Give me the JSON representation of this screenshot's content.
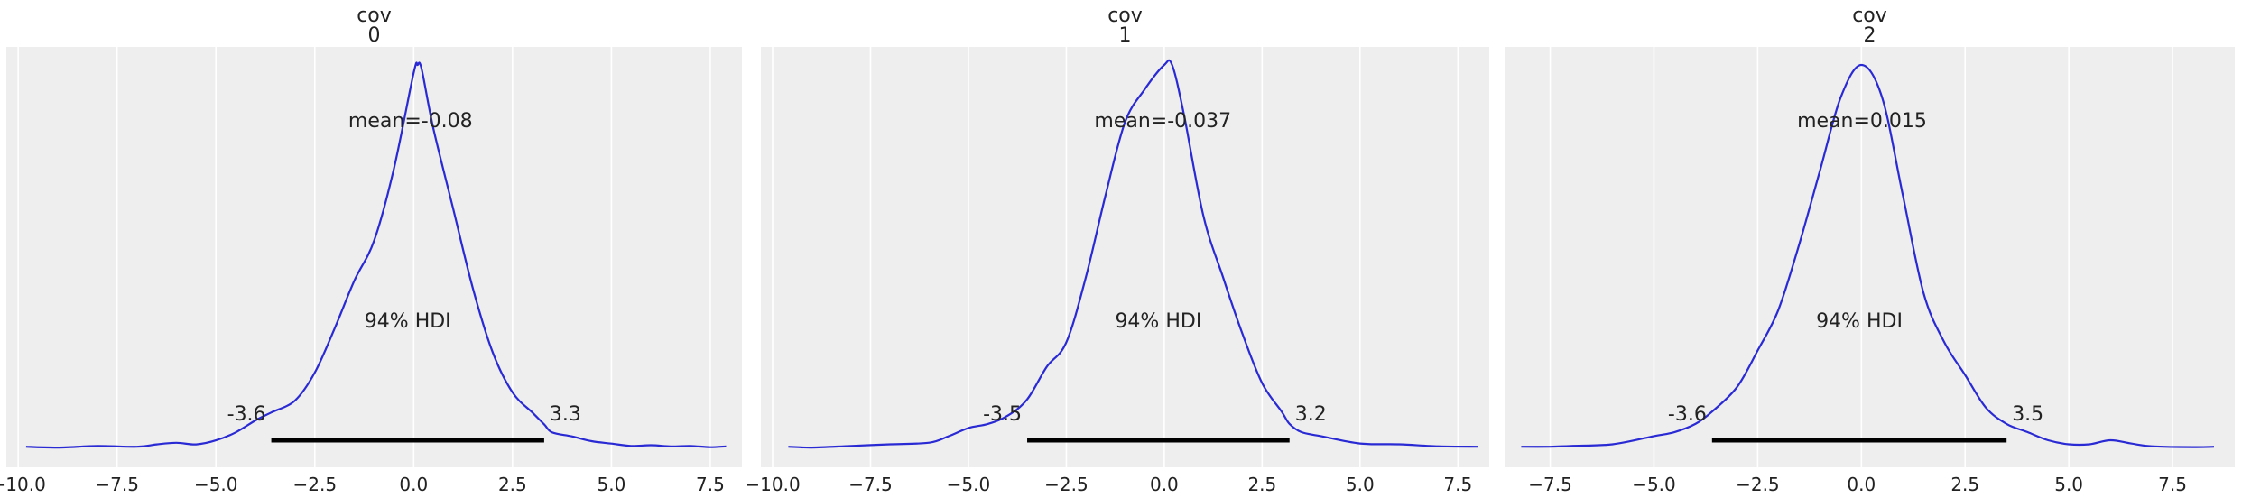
{
  "chart_data": [
    {
      "type": "line",
      "title": [
        "cov",
        "0"
      ],
      "xlim": [
        -10.3,
        8.3
      ],
      "xticks": [
        -10.0,
        -7.5,
        -5.0,
        -2.5,
        0.0,
        2.5,
        5.0,
        7.5
      ],
      "xtick_labels": [
        "−10.0",
        "−7.5",
        "−5.0",
        "−2.5",
        "0.0",
        "2.5",
        "5.0",
        "7.5"
      ],
      "grid": true,
      "density": {
        "x": [
          -9.8,
          -9.0,
          -8.0,
          -7.0,
          -6.5,
          -6.0,
          -5.5,
          -5.0,
          -4.5,
          -4.0,
          -3.6,
          -3.0,
          -2.5,
          -2.0,
          -1.5,
          -1.0,
          -0.5,
          0.0,
          0.1,
          0.2,
          0.5,
          1.0,
          1.5,
          2.0,
          2.5,
          3.0,
          3.3,
          3.5,
          4.0,
          4.5,
          5.0,
          5.5,
          6.0,
          6.5,
          7.0,
          7.5,
          7.9
        ],
        "y": [
          0.004,
          0.002,
          0.006,
          0.004,
          0.01,
          0.014,
          0.01,
          0.02,
          0.04,
          0.07,
          0.09,
          0.12,
          0.19,
          0.3,
          0.42,
          0.52,
          0.7,
          0.94,
          0.96,
          0.95,
          0.8,
          0.6,
          0.4,
          0.24,
          0.14,
          0.09,
          0.06,
          0.04,
          0.03,
          0.018,
          0.012,
          0.006,
          0.008,
          0.005,
          0.006,
          0.003,
          0.005
        ]
      },
      "mean_label": "mean=-0.08",
      "mean_label_x": -0.08,
      "hdi_label": "94% HDI",
      "hdi": [
        -3.6,
        3.3
      ],
      "hdi_lower_label": "-3.6",
      "hdi_upper_label": "3.3",
      "line_color": "#2a2ad4",
      "hdi_color": "#000000",
      "background_color": "#eeeeee",
      "grid_color": "#ffffff"
    },
    {
      "type": "line",
      "title": [
        "cov",
        "1"
      ],
      "xlim": [
        -10.3,
        8.3
      ],
      "xticks": [
        -10.0,
        -7.5,
        -5.0,
        -2.5,
        0.0,
        2.5,
        5.0,
        7.5
      ],
      "xtick_labels": [
        "−10.0",
        "−7.5",
        "−5.0",
        "−2.5",
        "0.0",
        "2.5",
        "5.0",
        "7.5"
      ],
      "grid": true,
      "density": {
        "x": [
          -9.6,
          -9.0,
          -8.0,
          -7.0,
          -6.0,
          -5.5,
          -5.0,
          -4.5,
          -4.0,
          -3.5,
          -3.0,
          -2.5,
          -2.0,
          -1.5,
          -1.0,
          -0.5,
          0.0,
          0.2,
          0.5,
          1.0,
          1.5,
          2.0,
          2.5,
          3.0,
          3.2,
          3.5,
          4.0,
          5.0,
          6.0,
          7.0,
          8.0
        ],
        "y": [
          0.004,
          0.002,
          0.006,
          0.01,
          0.014,
          0.03,
          0.05,
          0.06,
          0.08,
          0.12,
          0.2,
          0.26,
          0.42,
          0.62,
          0.8,
          0.88,
          0.94,
          0.94,
          0.82,
          0.57,
          0.42,
          0.28,
          0.16,
          0.09,
          0.06,
          0.04,
          0.03,
          0.012,
          0.01,
          0.005,
          0.004
        ]
      },
      "mean_label": "mean=-0.037",
      "mean_label_x": -0.037,
      "hdi_label": "94% HDI",
      "hdi": [
        -3.5,
        3.2
      ],
      "hdi_lower_label": "-3.5",
      "hdi_upper_label": "3.2",
      "line_color": "#2a2ad4",
      "hdi_color": "#000000",
      "background_color": "#eeeeee",
      "grid_color": "#ffffff"
    },
    {
      "type": "line",
      "title": [
        "cov",
        "2"
      ],
      "xlim": [
        -8.6,
        9.0
      ],
      "xticks": [
        -7.5,
        -5.0,
        -2.5,
        0.0,
        2.5,
        5.0,
        7.5
      ],
      "xtick_labels": [
        "−7.5",
        "−5.0",
        "−2.5",
        "0.0",
        "2.5",
        "5.0",
        "7.5"
      ],
      "grid": true,
      "density": {
        "x": [
          -8.2,
          -7.5,
          -7.0,
          -6.0,
          -5.0,
          -4.5,
          -4.0,
          -3.6,
          -3.0,
          -2.5,
          -2.0,
          -1.5,
          -1.0,
          -0.5,
          0.0,
          0.5,
          1.0,
          1.5,
          2.0,
          2.5,
          3.0,
          3.5,
          4.0,
          4.5,
          5.0,
          5.5,
          6.0,
          6.5,
          7.0,
          8.0,
          8.5
        ],
        "y": [
          0.004,
          0.004,
          0.006,
          0.01,
          0.03,
          0.04,
          0.06,
          0.09,
          0.15,
          0.24,
          0.34,
          0.5,
          0.68,
          0.86,
          0.94,
          0.86,
          0.62,
          0.38,
          0.26,
          0.18,
          0.1,
          0.06,
          0.04,
          0.02,
          0.01,
          0.01,
          0.02,
          0.012,
          0.005,
          0.003,
          0.004
        ]
      },
      "mean_label": "mean=0.015",
      "mean_label_x": 0.015,
      "hdi_label": "94% HDI",
      "hdi": [
        -3.6,
        3.5
      ],
      "hdi_lower_label": "-3.6",
      "hdi_upper_label": "3.5",
      "line_color": "#2a2ad4",
      "hdi_color": "#000000",
      "background_color": "#eeeeee",
      "grid_color": "#ffffff"
    }
  ]
}
